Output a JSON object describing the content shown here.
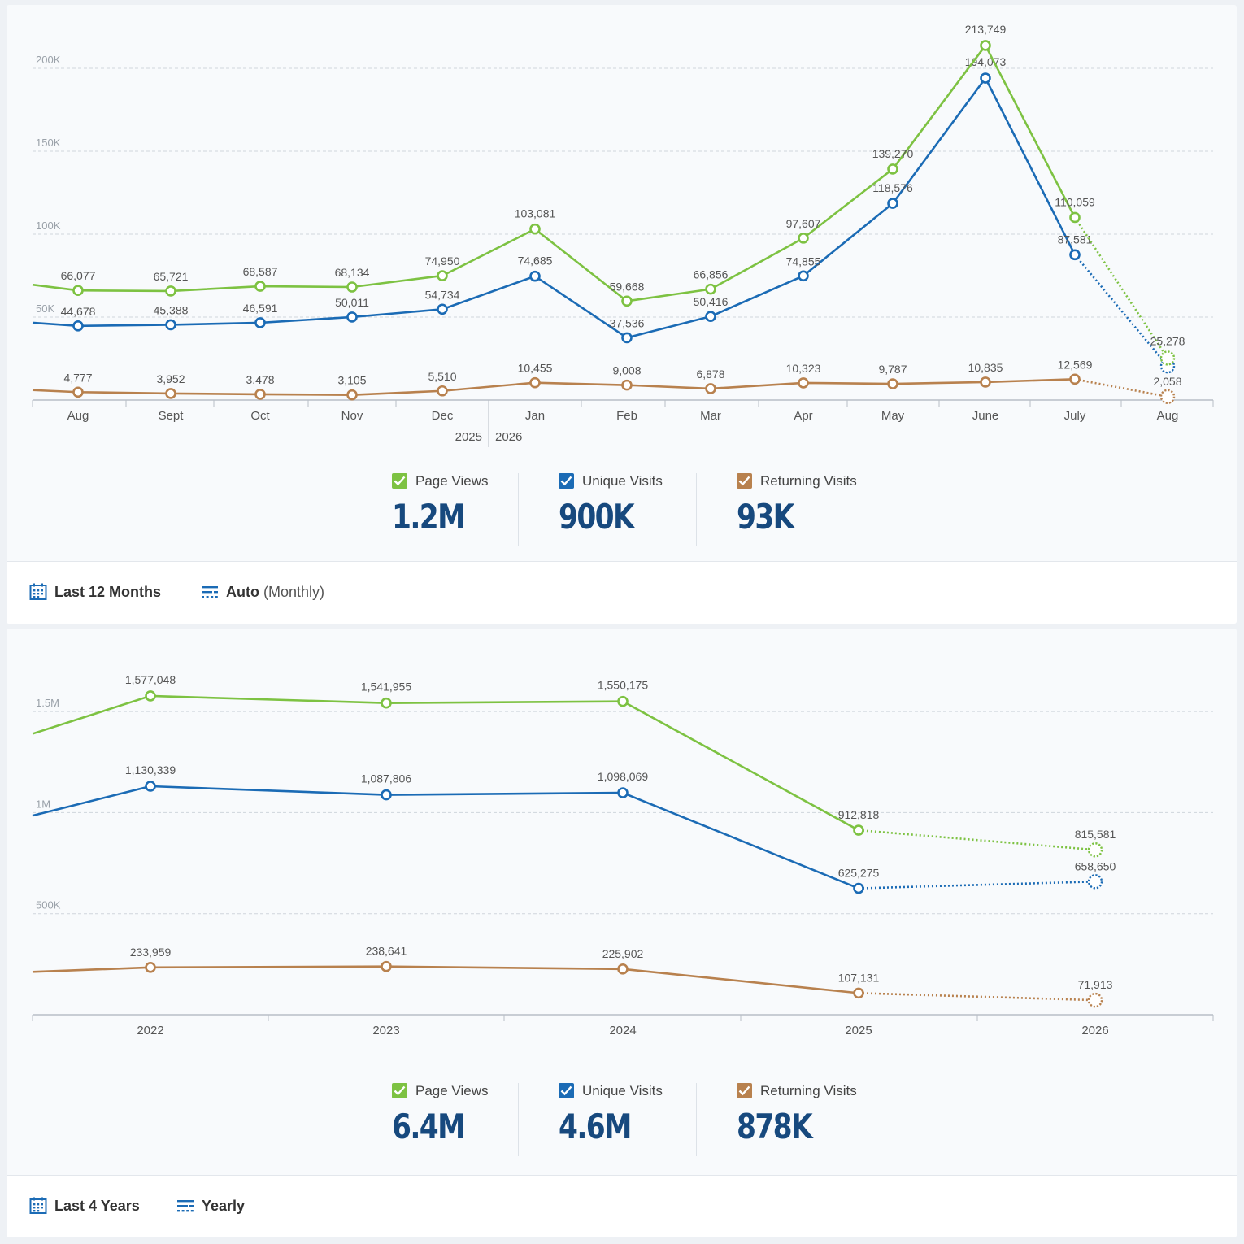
{
  "colors": {
    "page_views": "#7dc242",
    "unique_visits": "#1b6bb5",
    "returning_visits": "#b8814e",
    "summary_value": "#17497e"
  },
  "monthly": {
    "chart_data": {
      "type": "line",
      "categories": [
        "Aug",
        "Sept",
        "Oct",
        "Nov",
        "Dec",
        "Jan",
        "Feb",
        "Mar",
        "Apr",
        "May",
        "June",
        "July",
        "Aug"
      ],
      "year_labels": [
        "2025",
        "2026"
      ],
      "y_ticks": [
        "50K",
        "100K",
        "150K",
        "200K"
      ],
      "y_tick_values": [
        50000,
        100000,
        150000,
        200000
      ],
      "ylim": [
        0,
        220000
      ],
      "grid": true,
      "last_point_projected": true,
      "series": [
        {
          "name": "Page Views",
          "key": "page_views",
          "values": [
            66077,
            65721,
            68587,
            68134,
            74950,
            103081,
            59668,
            66856,
            97607,
            139270,
            213749,
            110059,
            25278
          ],
          "labels": [
            "66,077",
            "65,721",
            "68,587",
            "68,134",
            "74,950",
            "103,081",
            "59,668",
            "66,856",
            "97,607",
            "139,270",
            "213,749",
            "110,059",
            "25,278"
          ]
        },
        {
          "name": "Unique Visits",
          "key": "unique_visits",
          "values": [
            44678,
            45388,
            46591,
            50011,
            54734,
            74685,
            37536,
            50416,
            74855,
            118576,
            194073,
            87581,
            20500
          ],
          "labels": [
            "44,678",
            "45,388",
            "46,591",
            "50,011",
            "54,734",
            "74,685",
            "37,536",
            "50,416",
            "74,855",
            "118,576",
            "194,073",
            "87,581",
            ""
          ]
        },
        {
          "name": "Returning Visits",
          "key": "returning_visits",
          "values": [
            4777,
            3952,
            3478,
            3105,
            5510,
            10455,
            9008,
            6878,
            10323,
            9787,
            10835,
            12569,
            2058
          ],
          "labels": [
            "4,777",
            "3,952",
            "3,478",
            "3,105",
            "5,510",
            "10,455",
            "9,008",
            "6,878",
            "10,323",
            "9,787",
            "10,835",
            "12,569",
            "2,058"
          ]
        }
      ]
    },
    "summary": [
      {
        "label": "Page Views",
        "value": "1.2M"
      },
      {
        "label": "Unique Visits",
        "value": "900K"
      },
      {
        "label": "Returning Visits",
        "value": "93K"
      }
    ],
    "footer": {
      "range": "Last 12 Months",
      "interval": "Auto",
      "interval_sub": "(Monthly)"
    }
  },
  "yearly": {
    "chart_data": {
      "type": "line",
      "categories": [
        "2022",
        "2023",
        "2024",
        "2025",
        "2026"
      ],
      "y_ticks": [
        "500K",
        "1M",
        "1.5M"
      ],
      "y_tick_values": [
        500000,
        1000000,
        1500000
      ],
      "ylim": [
        0,
        1660000
      ],
      "grid": true,
      "last_point_projected": true,
      "series": [
        {
          "name": "Page Views",
          "key": "page_views",
          "values": [
            1577048,
            1541955,
            1550175,
            912818,
            815581
          ],
          "labels": [
            "1,577,048",
            "1,541,955",
            "1,550,175",
            "912,818",
            "815,581"
          ]
        },
        {
          "name": "Unique Visits",
          "key": "unique_visits",
          "values": [
            1130339,
            1087806,
            1098069,
            625275,
            658650
          ],
          "labels": [
            "1,130,339",
            "1,087,806",
            "1,098,069",
            "625,275",
            "658,650"
          ]
        },
        {
          "name": "Returning Visits",
          "key": "returning_visits",
          "values": [
            233959,
            238641,
            225902,
            107131,
            71913
          ],
          "labels": [
            "233,959",
            "238,641",
            "225,902",
            "107,131",
            "71,913"
          ]
        }
      ]
    },
    "summary": [
      {
        "label": "Page Views",
        "value": "6.4M"
      },
      {
        "label": "Unique Visits",
        "value": "4.6M"
      },
      {
        "label": "Returning Visits",
        "value": "878K"
      }
    ],
    "footer": {
      "range": "Last 4 Years",
      "interval": "Yearly"
    }
  }
}
